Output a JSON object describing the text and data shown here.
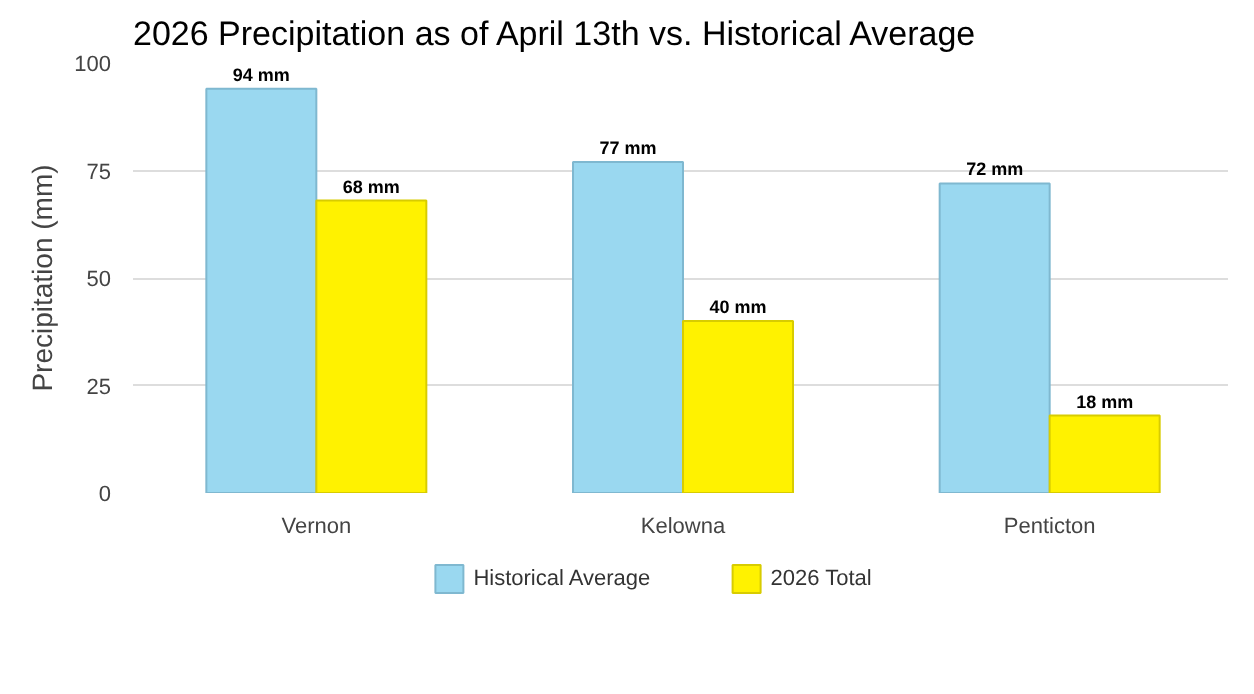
{
  "chart_data": {
    "type": "bar",
    "title": "2026 Precipitation as of April 13th vs. Historical Average",
    "ylabel": "Precipitation (mm)",
    "categories": [
      "Vernon",
      "Kelowna",
      "Penticton"
    ],
    "series": [
      {
        "name": "Historical Average",
        "color": "#9ad8f0",
        "values": [
          94,
          77,
          72
        ],
        "value_labels": [
          "94 mm",
          "77 mm",
          "72 mm"
        ]
      },
      {
        "name": "2026 Total",
        "color": "#fff200",
        "values": [
          68,
          40,
          18
        ],
        "value_labels": [
          "68 mm",
          "40 mm",
          "18 mm"
        ]
      }
    ],
    "ylim": [
      0,
      100
    ],
    "yticks": [
      0,
      25,
      50,
      75,
      100
    ],
    "grid": "y",
    "legend": "bottom"
  }
}
